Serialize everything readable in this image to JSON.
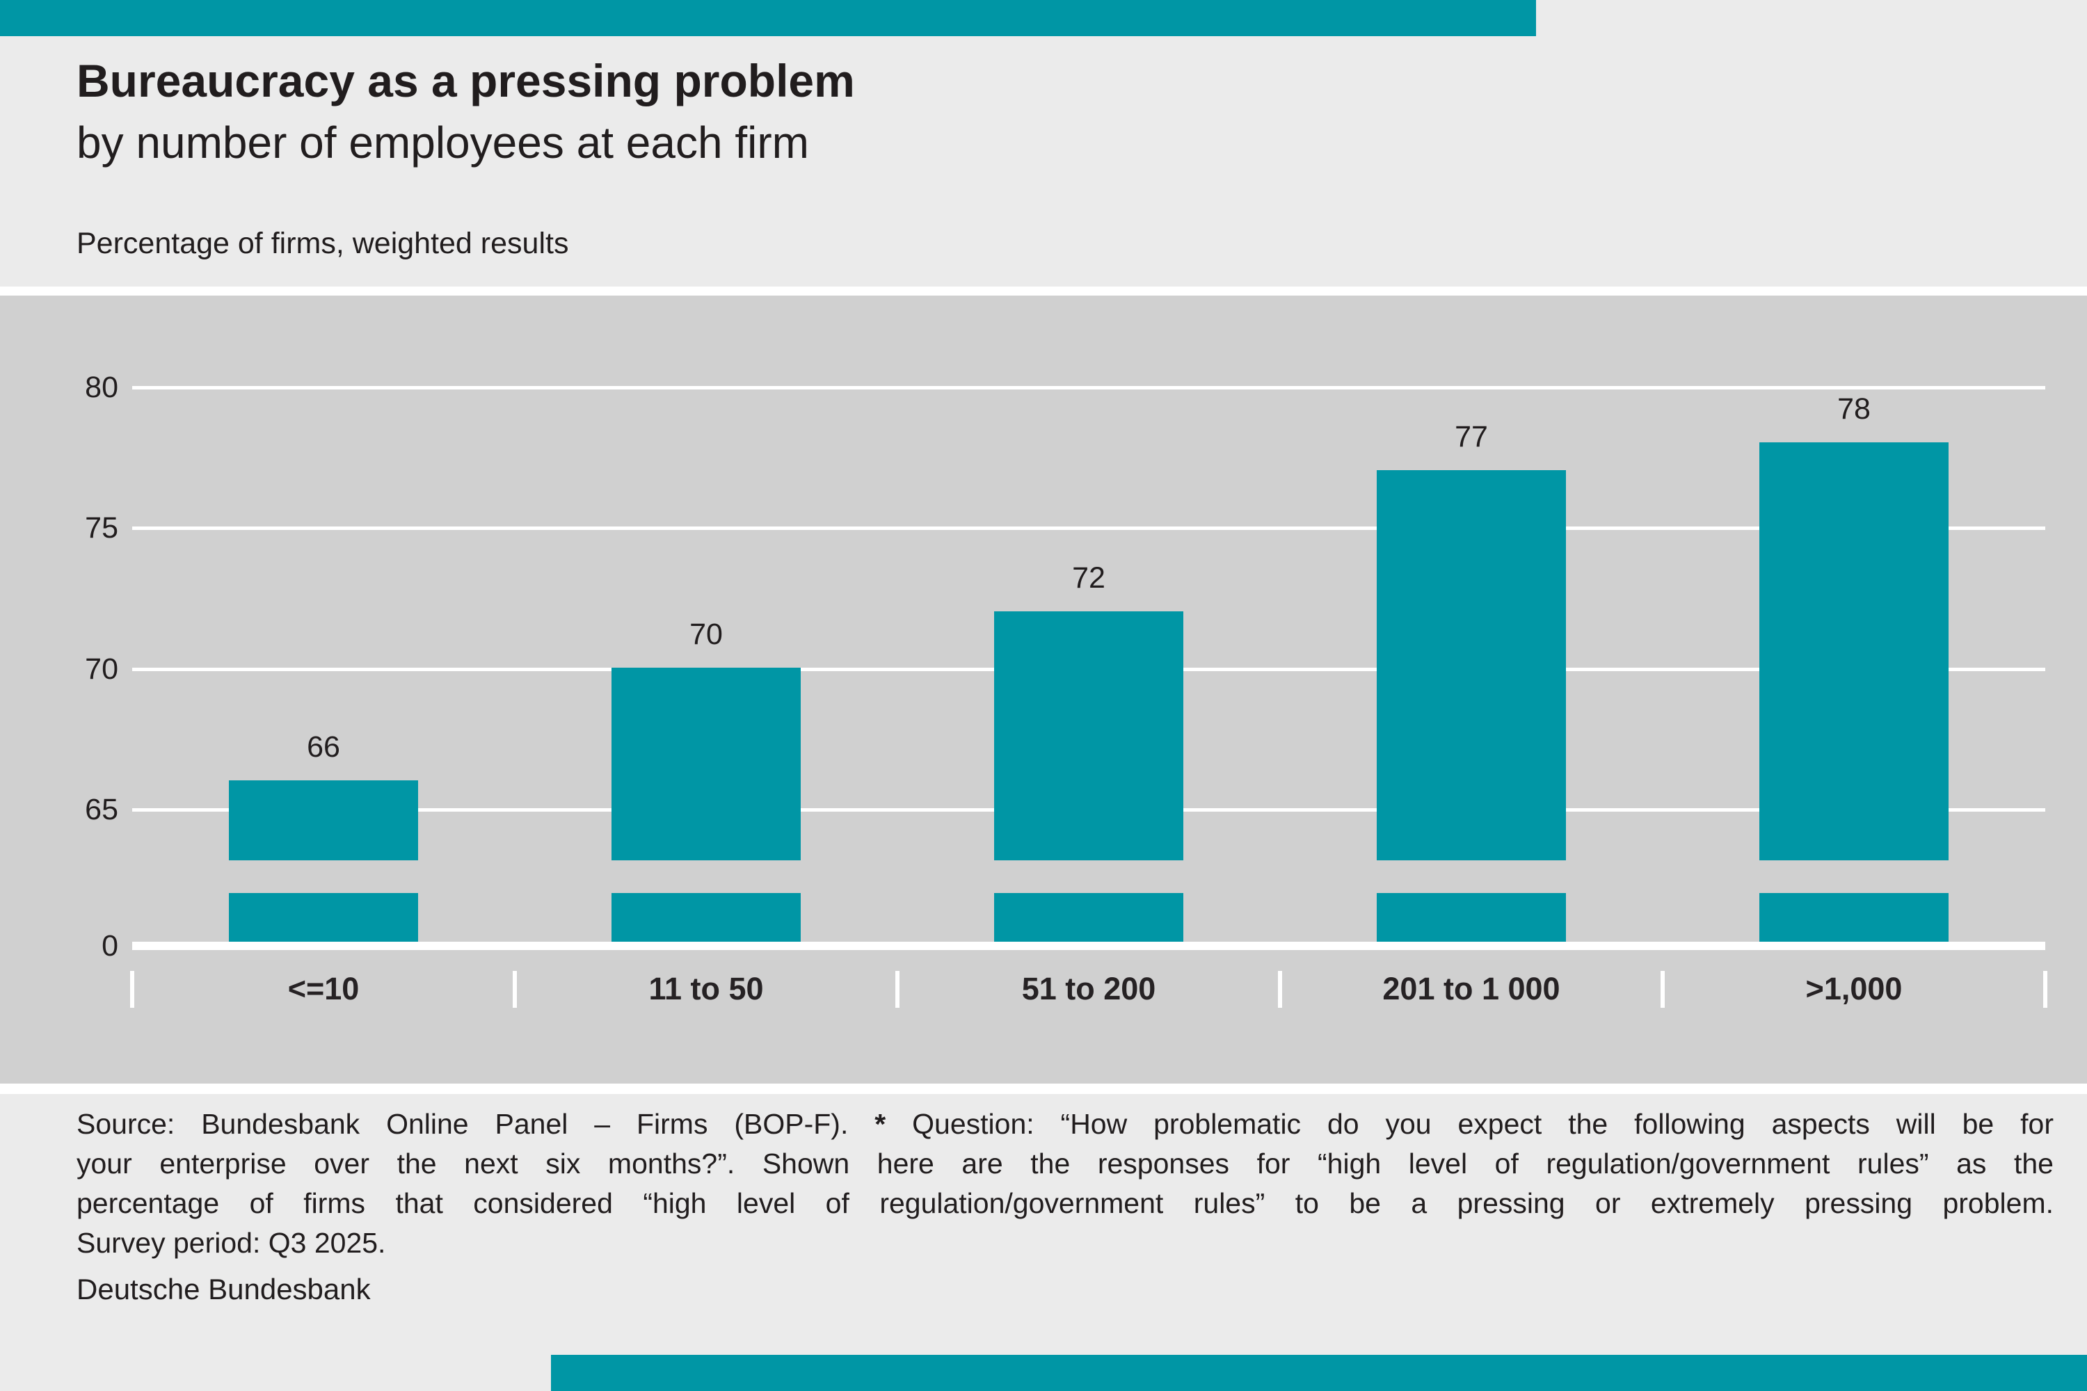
{
  "colors": {
    "accent_teal": "#0096a5",
    "page_background": "#ebebeb",
    "plot_background": "#d0d0d0",
    "gridline": "#ffffff",
    "text": "#211d1e"
  },
  "chart_data": {
    "type": "bar",
    "title": "Bureaucracy as a pressing problem",
    "subtitle": "by number of employees at each firm",
    "ylabel": "Percentage of firms, weighted results",
    "xlabel": "",
    "categories": [
      "<=10",
      "11 to 50",
      "51 to 200",
      "201 to 1 000",
      ">1,000"
    ],
    "values": [
      66,
      70,
      72,
      77,
      78
    ],
    "value_labels_shown": true,
    "yticks": [
      0,
      65,
      70,
      75,
      80
    ],
    "ylim": [
      0,
      80
    ],
    "axis_break_between": [
      0,
      65
    ],
    "grid": "horizontal white gridlines on gray panel",
    "legend": "none",
    "bar_color": "#0096a5"
  },
  "footnote": {
    "line1_pre": "Source: Bundesbank Online Panel – Firms (BOP-F). ",
    "line1_star": "*",
    "line1_post": " Question: “How problematic do you expect the following aspects will be for",
    "line2": "your enterprise over the next six months?”. Shown here are the responses for “high level of regulation/government rules” as the",
    "line3": "percentage of firms that considered “high level of regulation/government rules” to be a pressing or extremely pressing problem.",
    "line4": "Survey period: Q3 2025."
  },
  "publisher": "Deutsche Bundesbank"
}
